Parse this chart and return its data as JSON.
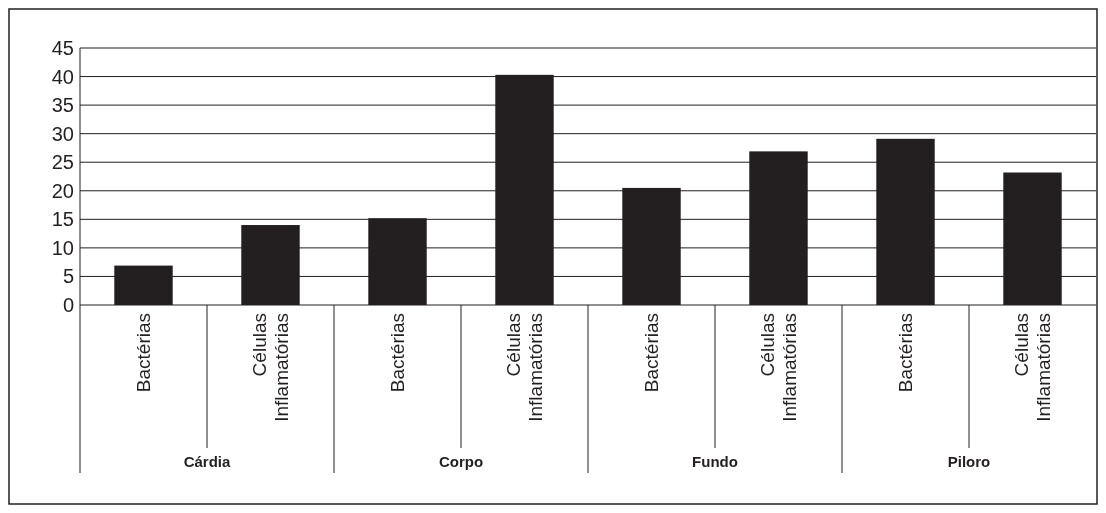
{
  "chart_data": {
    "type": "bar",
    "categories": [
      "Bactérias",
      "Células Inflamatórias",
      "Bactérias",
      "Células Inflamatórias",
      "Bactérias",
      "Células Inflamatórias",
      "Bactérias",
      "Células Inflamatórias"
    ],
    "values": [
      6.9,
      14,
      15.2,
      40.3,
      20.5,
      26.9,
      29.1,
      23.2
    ],
    "color": "#231f20",
    "ylim": [
      0,
      45
    ],
    "yticks": [
      0,
      5,
      10,
      15,
      20,
      25,
      30,
      35,
      40,
      45
    ],
    "grid": "y",
    "annotations": [
      "Cárdia",
      "Corpo",
      "Fundo",
      "Piloro"
    ]
  }
}
